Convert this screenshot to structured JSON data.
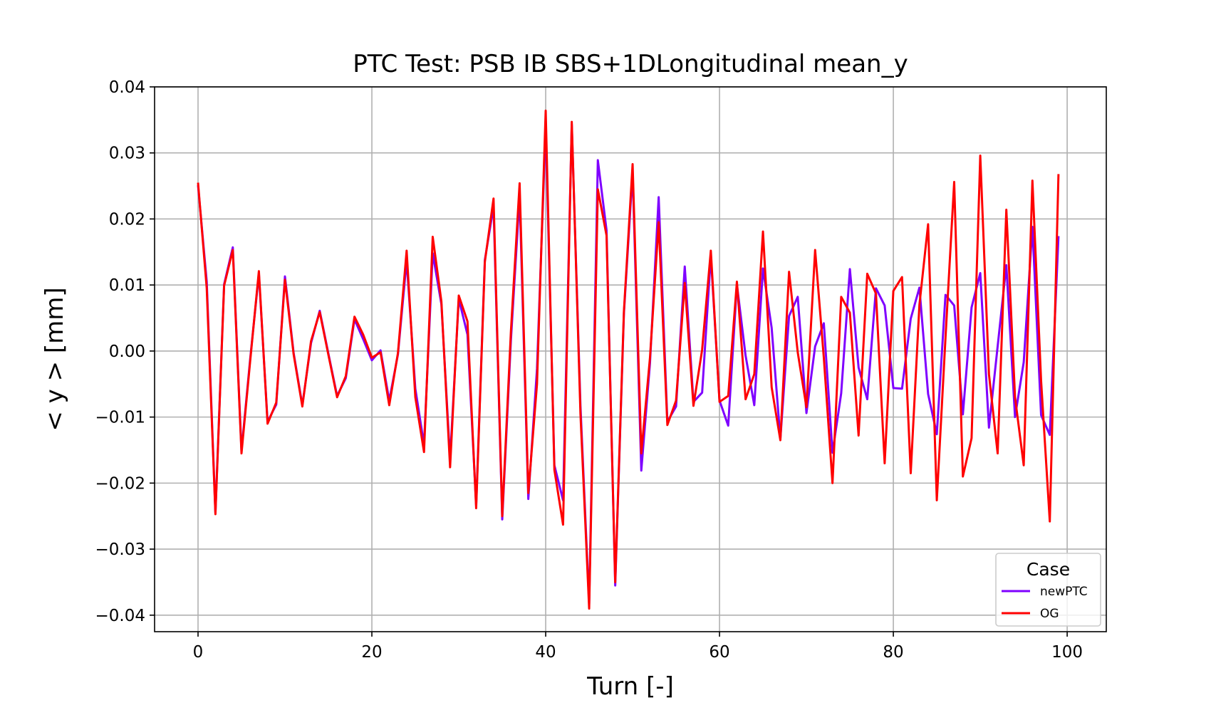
{
  "chart_data": {
    "type": "line",
    "title": "PTC Test: PSB IB SBS+1DLongitudinal mean_y",
    "xlabel": "Turn [-]",
    "ylabel": "< y >  [mm]",
    "xlim": [
      -5,
      104.5
    ],
    "ylim": [
      -0.0425,
      0.04
    ],
    "xticks": [
      0,
      20,
      40,
      60,
      80,
      100
    ],
    "xtick_labels": [
      "0",
      "20",
      "40",
      "60",
      "80",
      "100"
    ],
    "yticks": [
      0.04,
      0.03,
      0.02,
      0.01,
      0.0,
      -0.01,
      -0.02,
      -0.03,
      -0.04
    ],
    "ytick_labels": [
      "0.04",
      "0.03",
      "0.02",
      "0.01",
      "0.00",
      "−0.01",
      "−0.02",
      "−0.03",
      "−0.04"
    ],
    "grid": true,
    "legend": {
      "title": "Case",
      "position": "lower-right"
    },
    "series": [
      {
        "name": "newPTC",
        "color": "#7f00ff",
        "x": [
          0,
          1,
          2,
          3,
          4,
          5,
          6,
          7,
          8,
          9,
          10,
          11,
          12,
          13,
          14,
          15,
          16,
          17,
          18,
          19,
          20,
          21,
          22,
          23,
          24,
          25,
          26,
          27,
          28,
          29,
          30,
          31,
          32,
          33,
          34,
          35,
          36,
          37,
          38,
          39,
          40,
          41,
          42,
          43,
          44,
          45,
          46,
          47,
          48,
          49,
          50,
          51,
          52,
          53,
          54,
          55,
          56,
          57,
          58,
          59,
          60,
          61,
          62,
          63,
          64,
          65,
          66,
          67,
          68,
          69,
          70,
          71,
          72,
          73,
          74,
          75,
          76,
          77,
          78,
          79,
          80,
          81,
          82,
          83,
          84,
          85,
          86,
          87,
          88,
          89,
          90,
          91,
          92,
          93,
          94,
          95,
          96,
          97,
          98,
          99
        ],
        "values": [
          0.0251,
          0.0105,
          -0.0245,
          0.0101,
          0.0157,
          -0.0151,
          -0.0012,
          0.0117,
          -0.0107,
          -0.0081,
          0.0113,
          -0.0003,
          -0.0082,
          0.0012,
          0.0061,
          -0.0004,
          -0.0068,
          -0.0041,
          0.0048,
          0.0018,
          -0.0014,
          0.0001,
          -0.0075,
          -0.0005,
          0.0137,
          -0.0057,
          -0.0142,
          0.0148,
          0.0071,
          -0.0164,
          0.0079,
          0.0025,
          -0.0234,
          0.0138,
          0.0219,
          -0.0255,
          0.0017,
          0.0235,
          -0.0224,
          -0.0027,
          0.0341,
          -0.0173,
          -0.0226,
          0.0343,
          -0.0083,
          -0.0383,
          0.0289,
          0.0183,
          -0.0355,
          0.0057,
          0.0271,
          -0.0181,
          -0.0018,
          0.0233,
          -0.0107,
          -0.0084,
          0.0128,
          -0.0077,
          -0.0063,
          0.0145,
          -0.0075,
          -0.0113,
          0.0101,
          -0.0007,
          -0.0082,
          0.0125,
          0.0035,
          -0.0133,
          0.0053,
          0.0082,
          -0.0094,
          0.0007,
          0.0042,
          -0.0154,
          -0.0064,
          0.0124,
          -0.0025,
          -0.0073,
          0.0095,
          0.0069,
          -0.0056,
          -0.0057,
          0.0049,
          0.0096,
          -0.0065,
          -0.0126,
          0.0085,
          0.0069,
          -0.0096,
          0.0066,
          0.0118,
          -0.0116,
          0.0007,
          0.013,
          -0.01,
          -0.0017,
          0.0188,
          -0.0097,
          -0.0127,
          0.0174
        ]
      },
      {
        "name": "OG",
        "color": "#ff0000",
        "x": [
          0,
          1,
          2,
          3,
          4,
          5,
          6,
          7,
          8,
          9,
          10,
          11,
          12,
          13,
          14,
          15,
          16,
          17,
          18,
          19,
          20,
          21,
          22,
          23,
          24,
          25,
          26,
          27,
          28,
          29,
          30,
          31,
          32,
          33,
          34,
          35,
          36,
          37,
          38,
          39,
          40,
          41,
          42,
          43,
          44,
          45,
          46,
          47,
          48,
          49,
          50,
          51,
          52,
          53,
          54,
          55,
          56,
          57,
          58,
          59,
          60,
          61,
          62,
          63,
          64,
          65,
          66,
          67,
          68,
          69,
          70,
          71,
          72,
          73,
          74,
          75,
          76,
          77,
          78,
          79,
          80,
          81,
          82,
          83,
          84,
          85,
          86,
          87,
          88,
          89,
          90,
          91,
          92,
          93,
          94,
          95,
          96,
          97,
          98,
          99
        ],
        "values": [
          0.0255,
          0.0095,
          -0.0247,
          0.0099,
          0.0153,
          -0.0155,
          -0.0015,
          0.0121,
          -0.011,
          -0.0078,
          0.0108,
          -0.0005,
          -0.0084,
          0.0015,
          0.0059,
          -0.0006,
          -0.007,
          -0.0038,
          0.0052,
          0.0025,
          -0.001,
          -0.0002,
          -0.0082,
          -0.0003,
          0.0152,
          -0.007,
          -0.0153,
          0.0173,
          0.0075,
          -0.0176,
          0.0084,
          0.0045,
          -0.0238,
          0.0135,
          0.0231,
          -0.025,
          0.003,
          0.0254,
          -0.0215,
          -0.005,
          0.0364,
          -0.018,
          -0.0263,
          0.0347,
          -0.0095,
          -0.039,
          0.0245,
          0.0175,
          -0.035,
          0.006,
          0.0283,
          -0.0155,
          -0.001,
          0.0195,
          -0.0112,
          -0.0075,
          0.0103,
          -0.0083,
          0.0002,
          0.0152,
          -0.0077,
          -0.0068,
          0.0105,
          -0.0073,
          -0.0035,
          0.0181,
          -0.0055,
          -0.0135,
          0.012,
          -0.0002,
          -0.0085,
          0.0153,
          -0.001,
          -0.02,
          0.0082,
          0.0058,
          -0.0128,
          0.0117,
          0.0087,
          -0.017,
          0.0091,
          0.0112,
          -0.0185,
          0.007,
          0.0192,
          -0.0226,
          0.002,
          0.0256,
          -0.019,
          -0.0132,
          0.0296,
          -0.0035,
          -0.0155,
          0.0214,
          -0.007,
          -0.0173,
          0.0258,
          -0.0045,
          -0.0258,
          0.0268
        ]
      }
    ]
  }
}
